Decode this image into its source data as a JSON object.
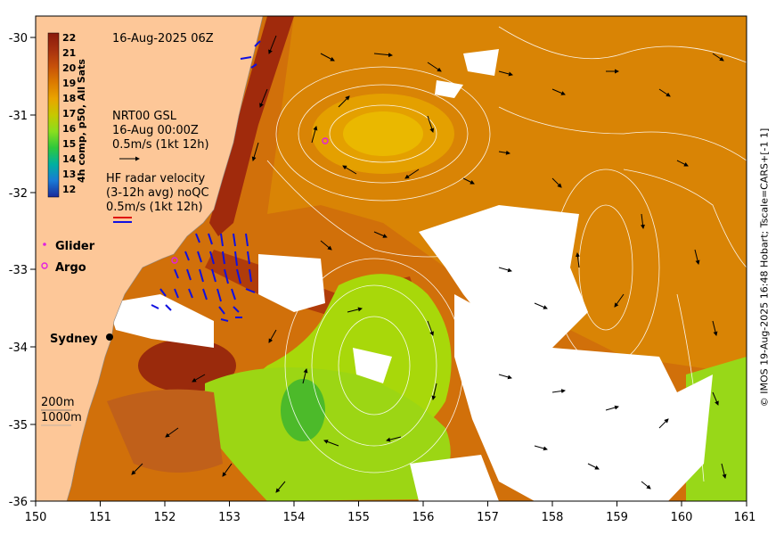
{
  "map": {
    "date_label": "16-Aug-2025 06Z",
    "x_ticks": [
      "150",
      "151",
      "152",
      "153",
      "154",
      "155",
      "156",
      "157",
      "158",
      "159",
      "160",
      "161"
    ],
    "y_ticks": [
      "-30",
      "-31",
      "-32",
      "-33",
      "-34",
      "-35",
      "-36"
    ],
    "lon_range": [
      150,
      161
    ],
    "lat_range": [
      -36,
      -29.8
    ]
  },
  "colorbar": {
    "title": "4h comp, p50, All Sats",
    "labels": [
      "22",
      "21",
      "20",
      "19",
      "18",
      "17",
      "16",
      "15",
      "14",
      "13",
      "12"
    ],
    "colors": [
      "#8a1a0c",
      "#a6300f",
      "#c64f0a",
      "#dc7a00",
      "#e9a400",
      "#c6c800",
      "#8ade1e",
      "#2ec83c",
      "#00b0a0",
      "#1a7ad6",
      "#1a2a9a"
    ]
  },
  "legend": {
    "current_source": "NRT00 GSL",
    "current_time": "16-Aug 00:00Z",
    "current_scale": "0.5m/s (1kt 12h)",
    "radar_title": "HF radar velocity",
    "radar_subtitle": "(3-12h avg) noQC",
    "radar_scale": "0.5m/s (1kt 12h)",
    "glider_label": "Glider",
    "argo_label": "Argo",
    "sydney_label": "Sydney",
    "isobath_200": "200m",
    "isobath_1000": "1000m"
  },
  "credit": "© IMOS 19-Aug-2025 16:48 Hobart; Tscale=CARS+[-1 1]",
  "colors": {
    "land": "#fdc798",
    "sst_warm": "#c85a0c",
    "sst_mid": "#dc8800",
    "sst_cool": "#8ede2a",
    "radar_red": "#e01010",
    "radar_blue": "#1010e0",
    "argo": "#e020e0"
  }
}
